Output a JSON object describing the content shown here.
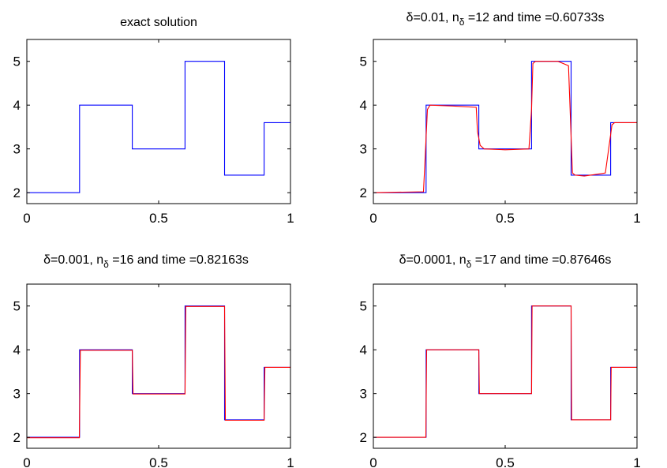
{
  "colors": {
    "exact": "#0000ff",
    "approx": "#ff0000",
    "axis": "#000000"
  },
  "chart_data": [
    {
      "type": "line",
      "title": "exact solution",
      "title_parts": [],
      "xlim": [
        0,
        1
      ],
      "ylim": [
        1.75,
        5.5
      ],
      "xticks": [
        0,
        0.5,
        1
      ],
      "xtick_labels": [
        "0",
        "0.5",
        "1"
      ],
      "yticks": [
        2,
        3,
        4,
        5
      ],
      "ytick_labels": [
        "2",
        "3",
        "4",
        "5"
      ],
      "series": [
        {
          "role": "exact",
          "x": [
            0,
            0.2,
            0.2,
            0.4,
            0.4,
            0.6,
            0.6,
            0.75,
            0.75,
            0.9,
            0.9,
            1
          ],
          "y": [
            2,
            2,
            4,
            4,
            3,
            3,
            5,
            5,
            2.4,
            2.4,
            3.6,
            3.6
          ]
        }
      ]
    },
    {
      "type": "line",
      "title": "",
      "title_parts": [
        "δ=0.01, n",
        "δ",
        " =12 and time =0.60733s"
      ],
      "xlim": [
        0,
        1
      ],
      "ylim": [
        1.75,
        5.5
      ],
      "xticks": [
        0,
        0.5,
        1
      ],
      "xtick_labels": [
        "0",
        "0.5",
        "1"
      ],
      "yticks": [
        2,
        3,
        4,
        5
      ],
      "ytick_labels": [
        "2",
        "3",
        "4",
        "5"
      ],
      "series": [
        {
          "role": "exact",
          "x": [
            0,
            0.2,
            0.2,
            0.4,
            0.4,
            0.6,
            0.6,
            0.75,
            0.75,
            0.9,
            0.9,
            1
          ],
          "y": [
            2,
            2,
            4,
            4,
            3,
            3,
            5,
            5,
            2.4,
            2.4,
            3.6,
            3.6
          ]
        },
        {
          "role": "approx",
          "x": [
            0,
            0.19,
            0.205,
            0.215,
            0.3,
            0.39,
            0.395,
            0.405,
            0.42,
            0.5,
            0.59,
            0.6,
            0.605,
            0.615,
            0.7,
            0.74,
            0.755,
            0.765,
            0.8,
            0.88,
            0.905,
            0.915,
            1
          ],
          "y": [
            2,
            2.02,
            3.9,
            4.0,
            3.98,
            3.95,
            3.4,
            3.08,
            3.0,
            2.98,
            3.0,
            3.9,
            4.95,
            5.0,
            5.0,
            4.9,
            2.45,
            2.4,
            2.38,
            2.45,
            3.55,
            3.6,
            3.6
          ]
        }
      ]
    },
    {
      "type": "line",
      "title": "",
      "title_parts": [
        "δ=0.001, n",
        "δ",
        " =16 and time =0.82163s"
      ],
      "xlim": [
        0,
        1
      ],
      "ylim": [
        1.75,
        5.5
      ],
      "xticks": [
        0,
        0.5,
        1
      ],
      "xtick_labels": [
        "0",
        "0.5",
        "1"
      ],
      "yticks": [
        2,
        3,
        4,
        5
      ],
      "ytick_labels": [
        "2",
        "3",
        "4",
        "5"
      ],
      "series": [
        {
          "role": "exact",
          "x": [
            0,
            0.2,
            0.2,
            0.4,
            0.4,
            0.6,
            0.6,
            0.75,
            0.75,
            0.9,
            0.9,
            1
          ],
          "y": [
            2,
            2,
            4,
            4,
            3,
            3,
            5,
            5,
            2.4,
            2.4,
            3.6,
            3.6
          ]
        },
        {
          "role": "approx",
          "x": [
            0,
            0.199,
            0.203,
            0.4,
            0.403,
            0.6,
            0.603,
            0.75,
            0.753,
            0.9,
            0.903,
            1
          ],
          "y": [
            1.99,
            1.99,
            3.99,
            3.99,
            2.99,
            2.99,
            4.99,
            4.99,
            2.39,
            2.39,
            3.6,
            3.6
          ]
        }
      ]
    },
    {
      "type": "line",
      "title": "",
      "title_parts": [
        "δ=0.0001, n",
        "δ",
        " =17 and time =0.87646s"
      ],
      "xlim": [
        0,
        1
      ],
      "ylim": [
        1.75,
        5.5
      ],
      "xticks": [
        0,
        0.5,
        1
      ],
      "xtick_labels": [
        "0",
        "0.5",
        "1"
      ],
      "yticks": [
        2,
        3,
        4,
        5
      ],
      "ytick_labels": [
        "2",
        "3",
        "4",
        "5"
      ],
      "series": [
        {
          "role": "exact",
          "x": [
            0,
            0.2,
            0.2,
            0.4,
            0.4,
            0.6,
            0.6,
            0.75,
            0.75,
            0.9,
            0.9,
            1
          ],
          "y": [
            2,
            2,
            4,
            4,
            3,
            3,
            5,
            5,
            2.4,
            2.4,
            3.6,
            3.6
          ]
        },
        {
          "role": "approx",
          "x": [
            0,
            0.199,
            0.202,
            0.4,
            0.402,
            0.6,
            0.602,
            0.75,
            0.752,
            0.9,
            0.902,
            1
          ],
          "y": [
            2,
            2,
            4,
            4,
            3,
            3,
            5,
            5,
            2.4,
            2.4,
            3.6,
            3.6
          ]
        }
      ]
    }
  ]
}
